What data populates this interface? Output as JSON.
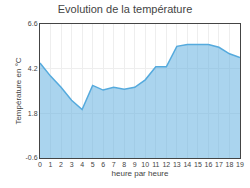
{
  "chart_data": {
    "type": "area",
    "title": "Evolution de la température",
    "xlabel": "heure par heure",
    "ylabel": "Température en °C",
    "x": [
      0,
      1,
      2,
      3,
      4,
      5,
      6,
      7,
      8,
      9,
      10,
      11,
      12,
      13,
      14,
      15,
      16,
      17,
      18,
      19
    ],
    "values": [
      4.5,
      3.8,
      3.2,
      2.5,
      2.0,
      3.3,
      3.05,
      3.2,
      3.1,
      3.2,
      3.6,
      4.3,
      4.3,
      5.4,
      5.5,
      5.5,
      5.5,
      5.35,
      5.0,
      4.8
    ],
    "color": "#55aadd",
    "xlim": [
      0,
      19
    ],
    "ylim": [
      -0.6,
      6.6
    ],
    "xticks": [
      0,
      1,
      2,
      3,
      4,
      5,
      6,
      7,
      8,
      9,
      10,
      11,
      12,
      13,
      14,
      15,
      16,
      17,
      18,
      19
    ],
    "yticks": [
      -0.6,
      1.8,
      4.2,
      6.6
    ],
    "grid": true
  }
}
